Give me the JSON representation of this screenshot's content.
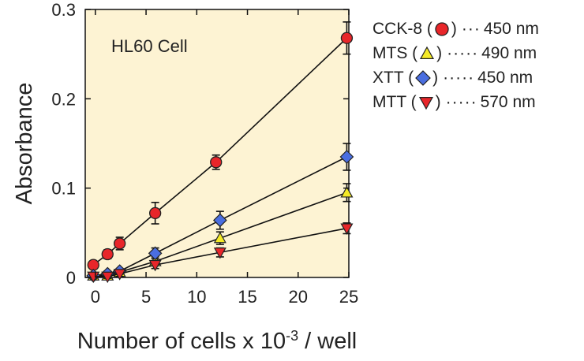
{
  "chart_data": {
    "type": "line",
    "title": "HL60 Cell",
    "xlabel": "Number of cells x 10",
    "xlabel_exponent": "-3",
    "xlabel_suffix": " / well",
    "ylabel": "Absorbance",
    "xlim": [
      -1,
      25
    ],
    "ylim": [
      0,
      0.3
    ],
    "x_ticks": [
      0,
      5,
      10,
      15,
      20,
      25
    ],
    "x_tick_labels": [
      "0",
      "5",
      "10",
      "15",
      "20",
      "25"
    ],
    "y_ticks": [
      0,
      0.1,
      0.2,
      0.3
    ],
    "y_tick_labels": [
      "0",
      "0.1",
      "0.2",
      "0.3"
    ],
    "background": "#fdf3d3",
    "series": [
      {
        "name": "CCK-8",
        "marker": "circle",
        "color": "#e8262a",
        "wavelength": "450 nm",
        "x": [
          -0.2,
          1.2,
          2.4,
          5.9,
          11.9,
          24.8
        ],
        "y": [
          0.014,
          0.026,
          0.038,
          0.072,
          0.129,
          0.268
        ],
        "err": [
          0.003,
          0.005,
          0.007,
          0.012,
          0.008,
          0.018
        ]
      },
      {
        "name": "MTS",
        "marker": "triangle",
        "color": "#f5ea26",
        "wavelength": "490 nm",
        "x": [
          -0.2,
          1.2,
          2.4,
          5.9,
          12.3,
          24.8
        ],
        "y": [
          0.002,
          0.002,
          0.006,
          0.018,
          0.044,
          0.095
        ],
        "err": [
          0.002,
          0.003,
          0.003,
          0.005,
          0.007,
          0.01
        ]
      },
      {
        "name": "XTT",
        "marker": "diamond",
        "color": "#4a6ee0",
        "wavelength": "450 nm",
        "x": [
          -0.2,
          1.2,
          2.4,
          5.9,
          12.3,
          24.8
        ],
        "y": [
          0.002,
          0.004,
          0.007,
          0.027,
          0.064,
          0.135
        ],
        "err": [
          0.002,
          0.003,
          0.003,
          0.006,
          0.01,
          0.015
        ]
      },
      {
        "name": "MTT",
        "marker": "triangle-down",
        "color": "#e8262a",
        "wavelength": "570 nm",
        "x": [
          -0.2,
          1.2,
          2.4,
          5.9,
          12.3,
          24.8
        ],
        "y": [
          0.001,
          0.001,
          0.004,
          0.014,
          0.028,
          0.055
        ],
        "err": [
          0.001,
          0.002,
          0.003,
          0.004,
          0.005,
          0.006
        ]
      }
    ]
  },
  "legend": [
    {
      "label": "CCK-8 (",
      "close": ")",
      "dots": "···",
      "value": "450 nm"
    },
    {
      "label": "MTS (",
      "close": ")",
      "dots": "·····",
      "value": "490 nm"
    },
    {
      "label": "XTT (",
      "close": ")",
      "dots": "·····",
      "value": "450 nm"
    },
    {
      "label": "MTT (",
      "close": ")",
      "dots": "·····",
      "value": "570 nm"
    }
  ]
}
